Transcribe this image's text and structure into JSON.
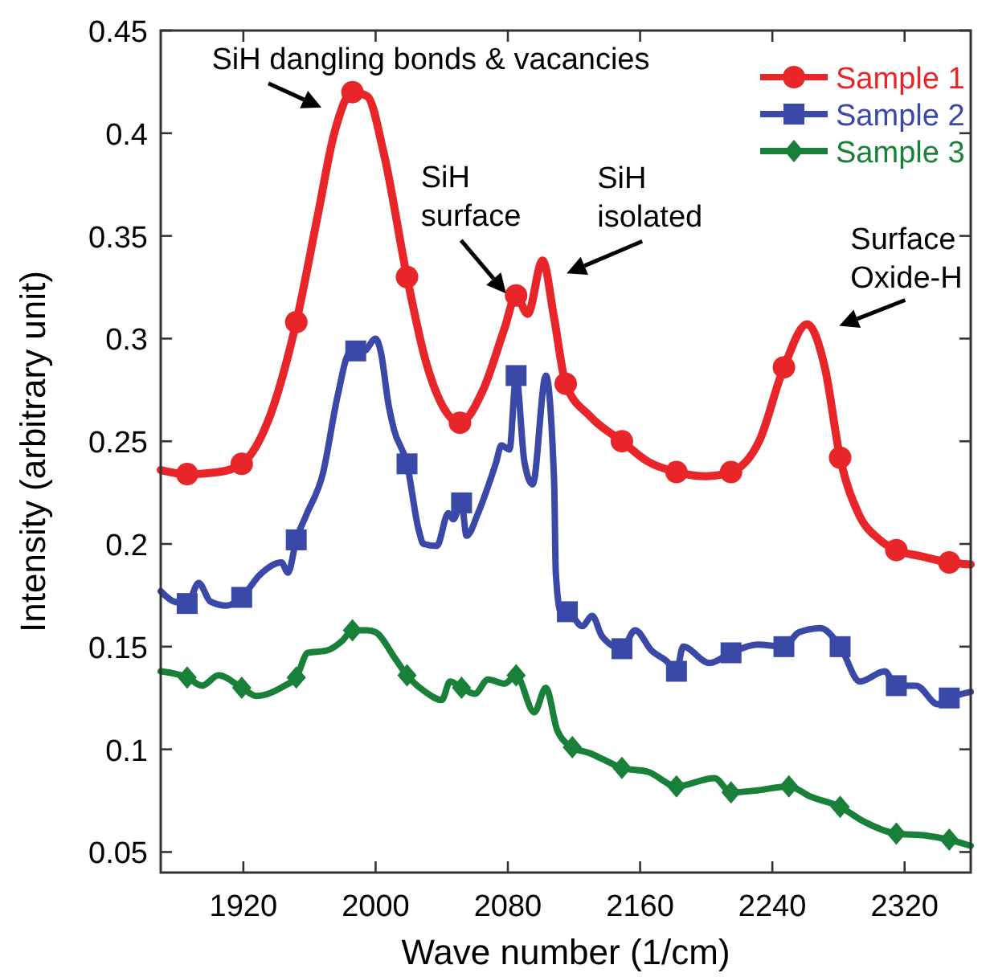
{
  "chart_data": {
    "type": "line",
    "xlabel": "Wave number (1/cm)",
    "ylabel": "Intensity (arbitrary unit)",
    "xlim": [
      1870,
      2360
    ],
    "xticks": [
      1920,
      2000,
      2080,
      2160,
      2240,
      2320
    ],
    "ylim": [
      0.04,
      0.45
    ],
    "yticks": [
      0.05,
      0.1,
      0.15,
      0.2,
      0.25,
      0.3,
      0.35,
      0.4,
      0.45
    ],
    "grid": false,
    "legend": "top right",
    "line_style": "solid",
    "series": [
      {
        "name": "Sample 1",
        "color": "#e8262a",
        "x": [
          1870,
          1886,
          1905,
          1919,
          1935,
          1952,
          1965,
          1975,
          1986,
          1995,
          2005,
          2019,
          2030,
          2040,
          2051,
          2065,
          2078,
          2085,
          2092,
          2101,
          2108,
          2115,
          2130,
          2149,
          2165,
          2182,
          2200,
          2215,
          2232,
          2247,
          2261,
          2272,
          2281,
          2292,
          2305,
          2315,
          2330,
          2347,
          2360
        ],
        "values": [
          0.236,
          0.234,
          0.235,
          0.239,
          0.26,
          0.308,
          0.36,
          0.4,
          0.42,
          0.418,
          0.39,
          0.33,
          0.29,
          0.268,
          0.259,
          0.275,
          0.305,
          0.321,
          0.312,
          0.338,
          0.31,
          0.278,
          0.262,
          0.25,
          0.24,
          0.235,
          0.233,
          0.235,
          0.25,
          0.286,
          0.307,
          0.285,
          0.242,
          0.215,
          0.202,
          0.197,
          0.194,
          0.191,
          0.19
        ]
      },
      {
        "color": "#e8262a",
        "type": "scatter",
        "marker": "circle",
        "x": [
          1886,
          1919,
          1952,
          1986,
          2019,
          2051,
          2085,
          2115,
          2149,
          2182,
          2215,
          2247,
          2281,
          2315,
          2347
        ],
        "values": [
          0.234,
          0.239,
          0.308,
          0.42,
          0.33,
          0.259,
          0.321,
          0.278,
          0.25,
          0.235,
          0.235,
          0.286,
          0.242,
          0.197,
          0.191
        ]
      },
      {
        "name": "Sample 2",
        "color": "#3a48a8",
        "x": [
          1870,
          1878,
          1886,
          1893,
          1900,
          1910,
          1919,
          1930,
          1943,
          1947,
          1952,
          1958,
          1968,
          1977,
          1984,
          1988,
          1993,
          2000,
          2003,
          2008,
          2011,
          2019,
          2026,
          2029,
          2037,
          2044,
          2047,
          2052,
          2055,
          2062,
          2068,
          2073,
          2076,
          2081,
          2085,
          2090,
          2095,
          2103,
          2108,
          2109,
          2112,
          2116,
          2125,
          2131,
          2137,
          2149,
          2157,
          2167,
          2176,
          2182,
          2186,
          2202,
          2215,
          2231,
          2247,
          2256,
          2269,
          2281,
          2293,
          2308,
          2315,
          2327,
          2340,
          2347,
          2360
        ],
        "values": [
          0.177,
          0.172,
          0.171,
          0.181,
          0.172,
          0.17,
          0.174,
          0.185,
          0.191,
          0.186,
          0.202,
          0.214,
          0.234,
          0.272,
          0.293,
          0.294,
          0.294,
          0.3,
          0.294,
          0.267,
          0.256,
          0.239,
          0.207,
          0.2,
          0.199,
          0.215,
          0.212,
          0.22,
          0.204,
          0.215,
          0.228,
          0.24,
          0.248,
          0.246,
          0.282,
          0.24,
          0.229,
          0.282,
          0.23,
          0.186,
          0.167,
          0.167,
          0.16,
          0.165,
          0.155,
          0.149,
          0.158,
          0.148,
          0.143,
          0.138,
          0.15,
          0.142,
          0.147,
          0.151,
          0.15,
          0.157,
          0.159,
          0.15,
          0.133,
          0.138,
          0.131,
          0.131,
          0.122,
          0.125,
          0.128
        ]
      },
      {
        "color": "#3a48a8",
        "type": "scatter",
        "marker": "square",
        "x": [
          1886,
          1919,
          1952,
          1988,
          2019,
          2052,
          2085,
          2116,
          2149,
          2182,
          2215,
          2247,
          2281,
          2315,
          2347
        ],
        "values": [
          0.171,
          0.174,
          0.202,
          0.294,
          0.239,
          0.22,
          0.282,
          0.167,
          0.149,
          0.138,
          0.147,
          0.15,
          0.15,
          0.131,
          0.125
        ]
      },
      {
        "name": "Sample 3",
        "color": "#188038",
        "x": [
          1870,
          1886,
          1895,
          1905,
          1919,
          1928,
          1945,
          1952,
          1959,
          1970,
          1980,
          1986,
          1995,
          2000,
          2012,
          2019,
          2030,
          2040,
          2045,
          2052,
          2060,
          2068,
          2078,
          2085,
          2096,
          2103,
          2110,
          2119,
          2130,
          2138,
          2149,
          2165,
          2182,
          2205,
          2215,
          2231,
          2250,
          2263,
          2281,
          2295,
          2315,
          2333,
          2347,
          2360
        ],
        "values": [
          0.138,
          0.135,
          0.131,
          0.136,
          0.13,
          0.126,
          0.131,
          0.135,
          0.147,
          0.148,
          0.153,
          0.158,
          0.158,
          0.157,
          0.144,
          0.136,
          0.128,
          0.124,
          0.133,
          0.13,
          0.127,
          0.134,
          0.132,
          0.136,
          0.118,
          0.13,
          0.109,
          0.101,
          0.098,
          0.095,
          0.091,
          0.089,
          0.082,
          0.086,
          0.079,
          0.08,
          0.082,
          0.077,
          0.072,
          0.065,
          0.059,
          0.058,
          0.056,
          0.053
        ]
      },
      {
        "color": "#188038",
        "type": "scatter",
        "marker": "diamond",
        "x": [
          1886,
          1919,
          1952,
          1986,
          2019,
          2052,
          2085,
          2119,
          2149,
          2182,
          2215,
          2250,
          2281,
          2315,
          2347
        ],
        "values": [
          0.135,
          0.13,
          0.135,
          0.158,
          0.136,
          0.13,
          0.136,
          0.101,
          0.091,
          0.082,
          0.079,
          0.082,
          0.072,
          0.059,
          0.056
        ]
      }
    ],
    "annotations": [
      {
        "text": "SiH dangling bonds & vacancies",
        "x": 1975,
        "y": 0.4
      },
      {
        "text": "SiH\nsurface",
        "x": 2076,
        "y": 0.322
      },
      {
        "text": "SiH\nisolated",
        "x": 2101,
        "y": 0.338
      },
      {
        "text": "Surface\nOxide-H",
        "x": 2261,
        "y": 0.307
      }
    ]
  }
}
